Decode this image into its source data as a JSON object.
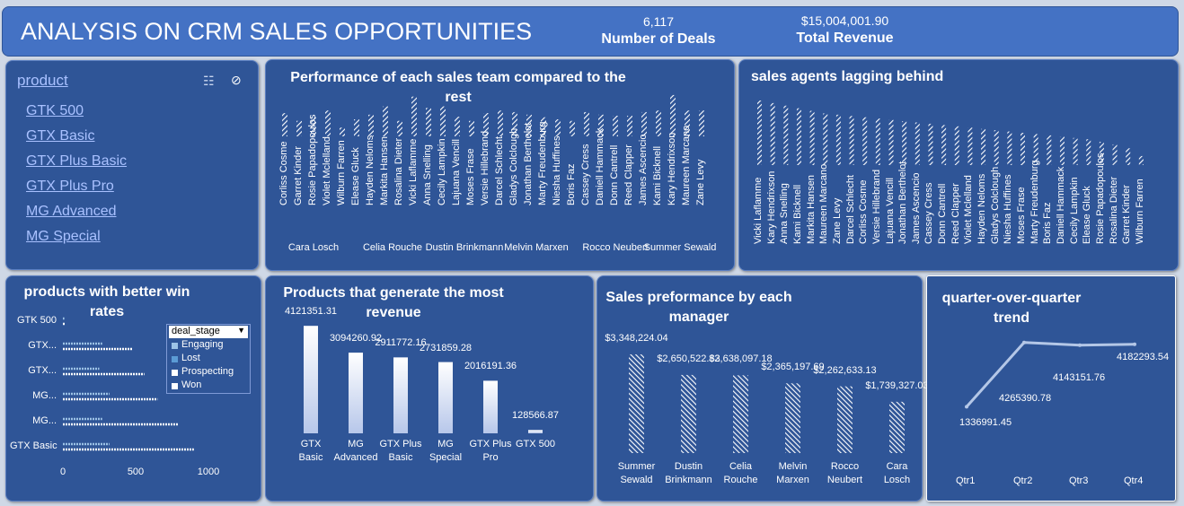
{
  "header": {
    "title": "ANALYSIS ON CRM SALES OPPORTUNITIES",
    "deals_value": "6,117",
    "deals_label": "Number of Deals",
    "revenue_value": "$15,004,001.90",
    "revenue_label": "Total Revenue"
  },
  "slicer": {
    "title": "product",
    "items": [
      "GTK 500",
      "GTX Basic",
      "GTX Plus Basic",
      "GTX Plus Pro",
      "MG Advanced",
      "MG Special"
    ]
  },
  "colors": {
    "panel": "#2f5597",
    "header": "#4472c4",
    "accent": "#ffffff"
  },
  "chart_data": [
    {
      "id": "team",
      "type": "bar",
      "title": "Performance of each sales team compared to the rest",
      "categories": [
        "Corliss Cosme",
        "Garret Kinder",
        "Rosie Papadopoulos",
        "Violet Mclelland",
        "Wilburn Farren",
        "Elease Gluck",
        "Hayden Neloms",
        "Markita Hansen",
        "Rosalina Dieter",
        "Vicki Laflamme",
        "Anna Snelling",
        "Cecily Lampkin",
        "Lajuana Vencill",
        "Moses Frase",
        "Versie Hillebrand",
        "Darcel Schlecht",
        "Gladys Colclough",
        "Jonathan Berthelot",
        "Marty Freudenburg",
        "Niesha Huffines",
        "Boris Faz",
        "Cassey Cress",
        "Daniell Hammack",
        "Donn Cantrell",
        "Reed Clapper",
        "James Ascencio",
        "Kami Bicknell",
        "Kary Hendrixson",
        "Maureen Marcano",
        "Zane Levy"
      ],
      "values": [
        45,
        30,
        37,
        50,
        17,
        33,
        42,
        58,
        30,
        77,
        55,
        58,
        38,
        30,
        45,
        50,
        47,
        42,
        37,
        33,
        30,
        47,
        42,
        40,
        40,
        47,
        50,
        80,
        50,
        50
      ],
      "groups": [
        {
          "label": "Cara Losch",
          "start": 0,
          "end": 4
        },
        {
          "label": "Celia Rouche",
          "start": 5,
          "end": 10
        },
        {
          "label": "Dustin Brinkmann",
          "start": 11,
          "end": 14
        },
        {
          "label": "Melvin Marxen",
          "start": 15,
          "end": 20
        },
        {
          "label": "Rocco Neubert",
          "start": 21,
          "end": 25
        },
        {
          "label": "Summer Sewald",
          "start": 26,
          "end": 29
        }
      ],
      "ylim": [
        0,
        100
      ]
    },
    {
      "id": "lagging",
      "type": "bar",
      "title": "sales agents lagging behind",
      "categories": [
        "Vicki Laflamme",
        "Kary Hendrixson",
        "Anna Snelling",
        "Kami Bicknell",
        "Markita Hansen",
        "Maureen Marcano",
        "Zane Levy",
        "Darcel Schlecht",
        "Corliss Cosme",
        "Versie Hillebrand",
        "Lajuana Vencill",
        "Jonathan Berthelot",
        "James Ascencio",
        "Cassey Cress",
        "Donn Cantrell",
        "Reed Clapper",
        "Violet Mclelland",
        "Hayden Neloms",
        "Gladys Colclough",
        "Niesha Huffines",
        "Moses Frase",
        "Marty Freudenburg",
        "Boris Faz",
        "Daniell Hammack",
        "Cecily Lampkin",
        "Elease Gluck",
        "Rosie Papadopoulos",
        "Rosalina Dieter",
        "Garret Kinder",
        "Wilburn Farren"
      ],
      "values": [
        100,
        96,
        92,
        88,
        84,
        80,
        78,
        76,
        74,
        72,
        70,
        68,
        66,
        64,
        62,
        60,
        58,
        56,
        54,
        52,
        50,
        48,
        46,
        44,
        42,
        40,
        36,
        32,
        26,
        14
      ],
      "ylim": [
        0,
        100
      ]
    },
    {
      "id": "winrate",
      "type": "bar",
      "title": "products with better win rates",
      "orientation": "horizontal",
      "categories": [
        "GTK 500",
        "GTX...",
        "GTX...",
        "MG...",
        "MG...",
        "GTX Basic"
      ],
      "series": [
        {
          "name": "Engaging",
          "values": [
            10,
            270,
            250,
            320,
            270,
            320
          ]
        },
        {
          "name": "Lost",
          "values": [
            0,
            0,
            0,
            0,
            0,
            0
          ]
        },
        {
          "name": "Prospecting",
          "values": [
            0,
            0,
            0,
            0,
            0,
            0
          ]
        },
        {
          "name": "Won",
          "values": [
            15,
            480,
            560,
            650,
            790,
            900
          ]
        }
      ],
      "legend_title": "deal_stage",
      "xticks": [
        0,
        500,
        1000
      ],
      "xlim": [
        0,
        1000
      ]
    },
    {
      "id": "revenue",
      "type": "bar",
      "title": "Products that generate the most revenue",
      "categories": [
        "GTX Basic",
        "MG Advanced",
        "GTX Plus Basic",
        "MG Special",
        "GTX Plus Pro",
        "GTX 500"
      ],
      "values": [
        4121351.31,
        3094260.92,
        2911772.16,
        2731859.28,
        2016191.36,
        128566.87
      ],
      "labels": [
        "4121351.31",
        "3094260.92",
        "2911772.16",
        "2731859.28",
        "2016191.36",
        "128566.87"
      ],
      "ylim": [
        0,
        4300000
      ]
    },
    {
      "id": "manager",
      "type": "bar",
      "title": "Sales preformance by each manager",
      "categories": [
        "Summer Sewald",
        "Dustin Brinkmann",
        "Celia Rouche",
        "Melvin Marxen",
        "Rocco Neubert",
        "Cara Losch"
      ],
      "values": [
        3348224.04,
        2650522.83,
        2638097.18,
        2365197.69,
        2262633.13,
        1739327.03
      ],
      "labels": [
        "$3,348,224.04",
        "$2,650,522.83",
        "$2,638,097.18",
        "$2,365,197.69",
        "$2,262,633.13",
        "$1,739,327.03"
      ],
      "ylim": [
        0,
        3500000
      ]
    },
    {
      "id": "quarter",
      "type": "line",
      "title": "quarter-over-quarter trend",
      "categories": [
        "Qtr1",
        "Qtr2",
        "Qtr3",
        "Qtr4"
      ],
      "values": [
        1336991.45,
        4265390.78,
        4143151.76,
        4182293.54
      ],
      "labels": [
        "1336991.45",
        "4265390.78",
        "4143151.76",
        "4182293.54"
      ],
      "ylim": [
        0,
        4500000
      ]
    }
  ]
}
